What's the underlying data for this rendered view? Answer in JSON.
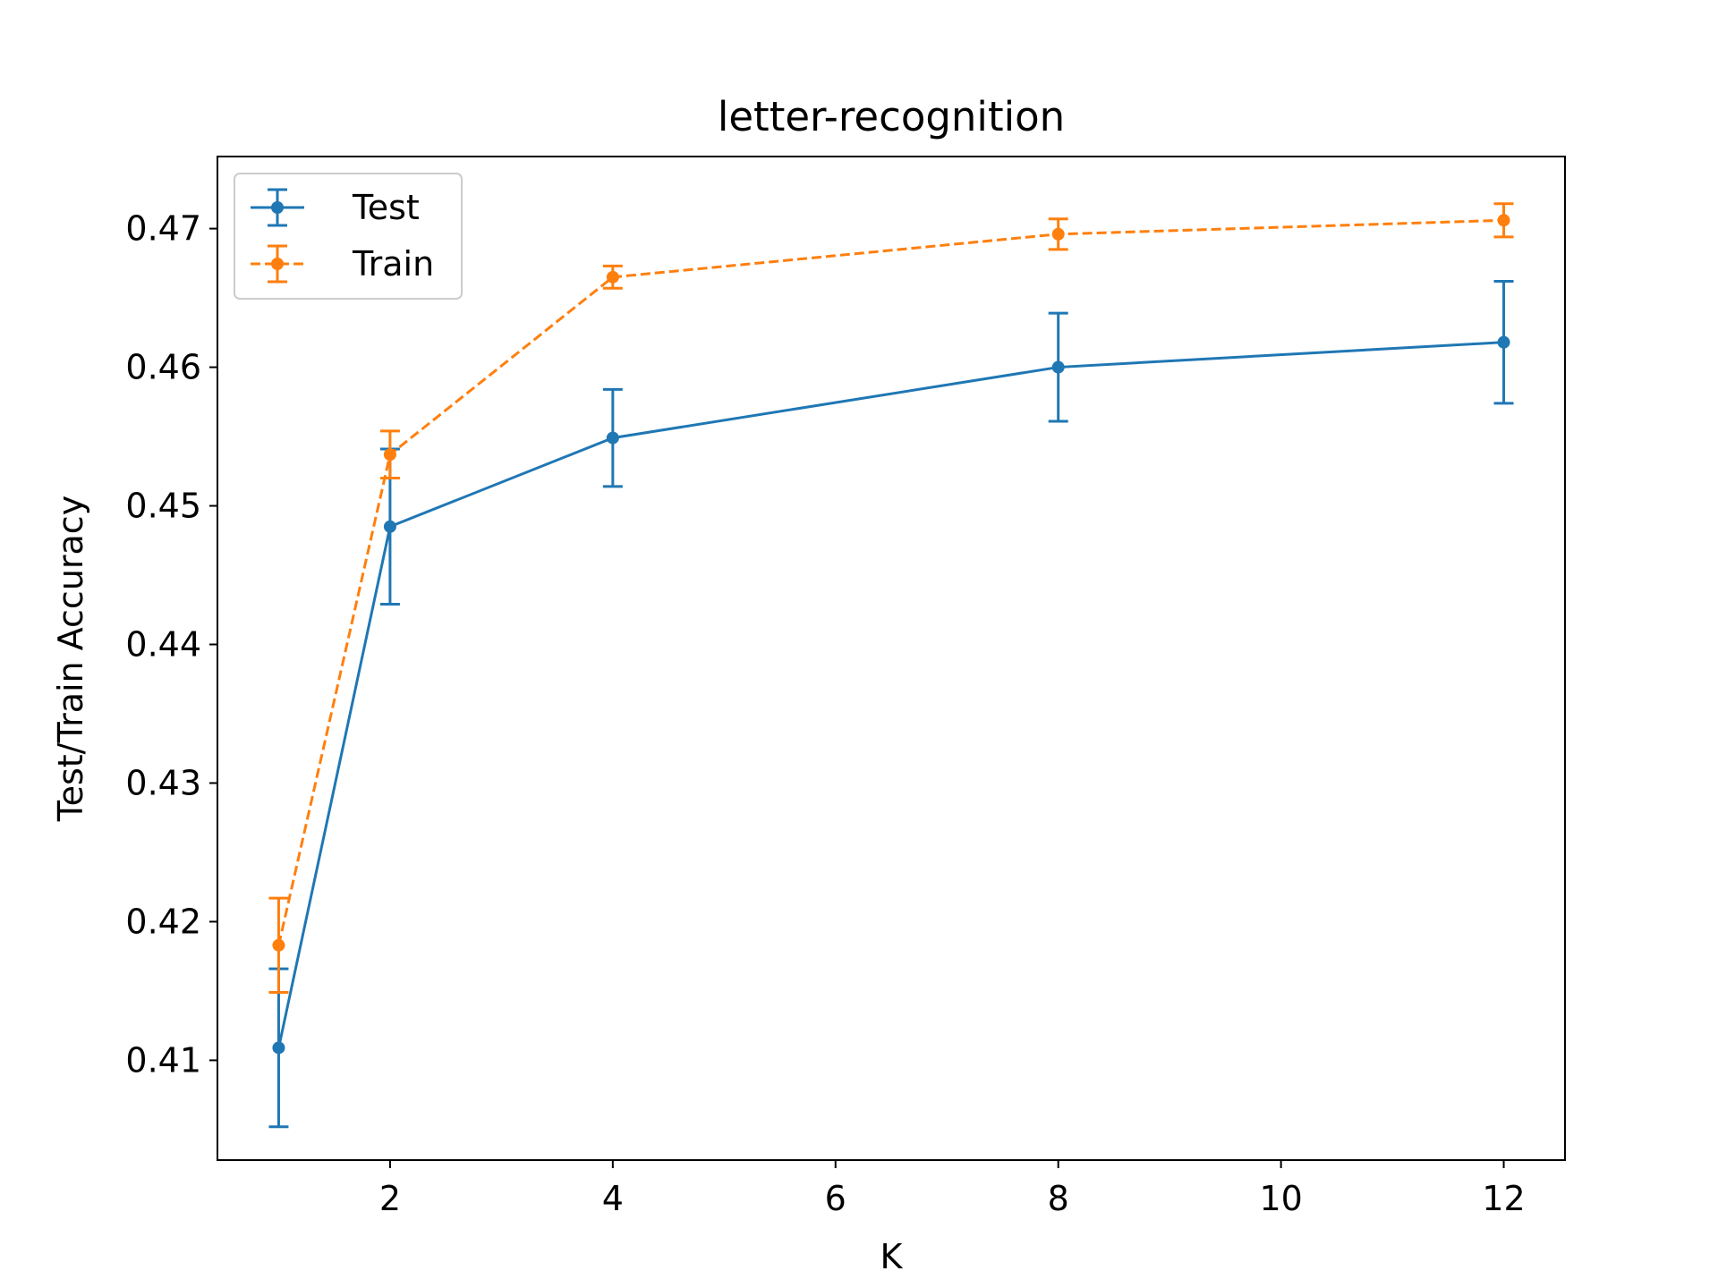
{
  "chart_data": {
    "type": "line",
    "title": "letter-recognition",
    "xlabel": "K",
    "ylabel": "Test/Train Accuracy",
    "xlim": [
      0.45,
      12.55
    ],
    "ylim": [
      0.4028,
      0.4752
    ],
    "x_ticks": [
      2,
      4,
      6,
      8,
      10,
      12
    ],
    "x_tick_labels": [
      "2",
      "4",
      "6",
      "8",
      "10",
      "12"
    ],
    "y_ticks": [
      0.41,
      0.42,
      0.43,
      0.44,
      0.45,
      0.46,
      0.47
    ],
    "y_tick_labels": [
      "0.41",
      "0.42",
      "0.43",
      "0.44",
      "0.45",
      "0.46",
      "0.47"
    ],
    "grid": false,
    "legend_position": "top-left",
    "x": [
      1,
      2,
      4,
      8,
      12
    ],
    "series": [
      {
        "name": "Test",
        "color": "#1f77b4",
        "line_style": "solid",
        "values": [
          0.4109,
          0.4485,
          0.4549,
          0.46,
          0.4618
        ],
        "errors": [
          0.0057,
          0.0056,
          0.0035,
          0.0039,
          0.0044
        ]
      },
      {
        "name": "Train",
        "color": "#ff7f0e",
        "line_style": "dashed",
        "values": [
          0.4183,
          0.4537,
          0.4665,
          0.4696,
          0.4706
        ],
        "errors": [
          0.0034,
          0.0017,
          0.0008,
          0.0011,
          0.0012
        ]
      }
    ]
  }
}
